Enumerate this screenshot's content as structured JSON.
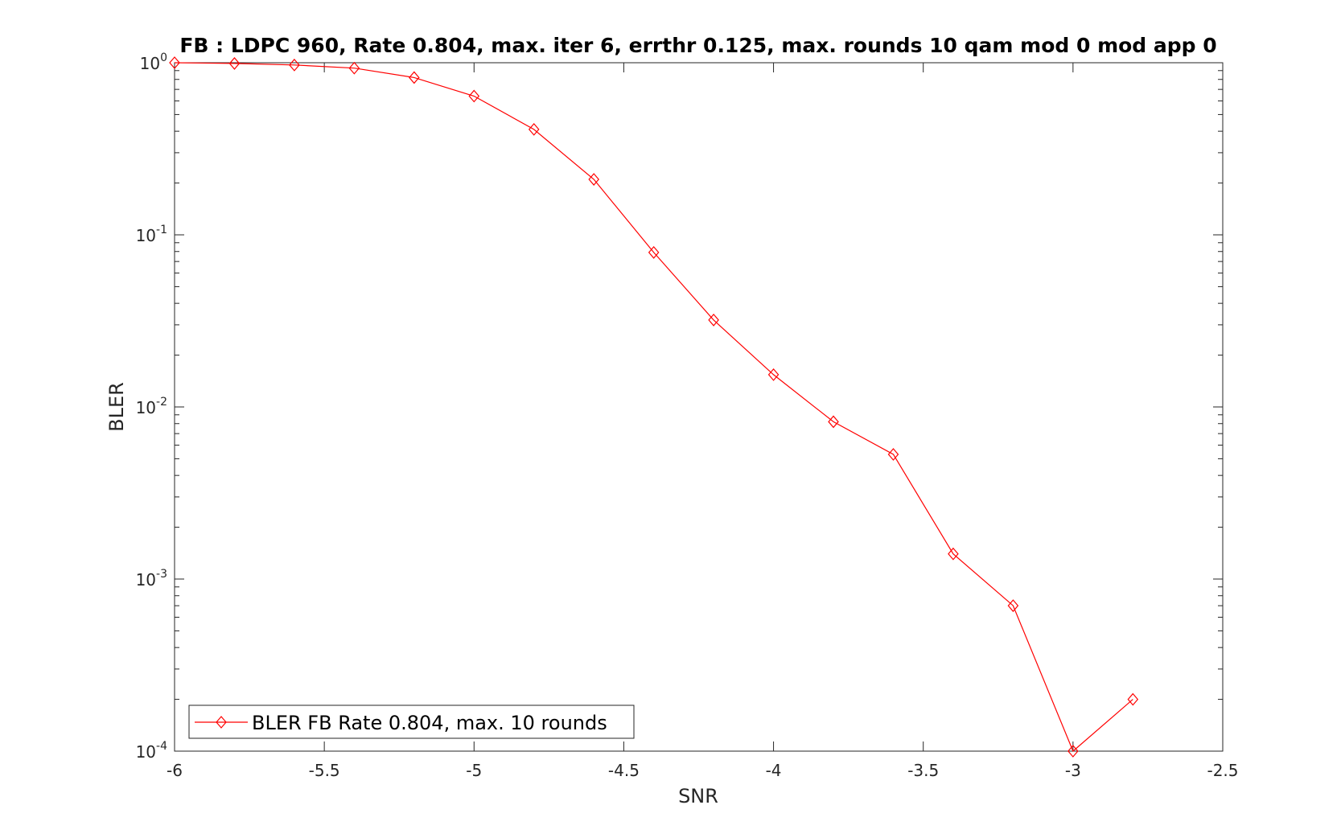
{
  "chart_data": {
    "type": "line",
    "title": "FB : LDPC 960, Rate 0.804, max. iter 6, errthr 0.125, max. rounds 10 qam mod 0 mod app 0",
    "xlabel": "SNR",
    "ylabel": "BLER",
    "xlim": [
      -6,
      -2.5
    ],
    "ylim": [
      0.0001,
      1
    ],
    "yscale": "log",
    "grid": false,
    "legend_position": "bottom-left",
    "x_ticks": [
      "-6",
      "-5.5",
      "-5",
      "-4.5",
      "-4",
      "-3.5",
      "-3",
      "-2.5"
    ],
    "y_ticks": [
      {
        "base": "10",
        "exp": "0"
      },
      {
        "base": "10",
        "exp": "-1"
      },
      {
        "base": "10",
        "exp": "-2"
      },
      {
        "base": "10",
        "exp": "-3"
      },
      {
        "base": "10",
        "exp": "-4"
      }
    ],
    "series": [
      {
        "name": "BLER FB Rate 0.804, max. 10 rounds",
        "color": "#ff0000",
        "marker": "diamond",
        "x": [
          -6.0,
          -5.8,
          -5.6,
          -5.4,
          -5.2,
          -5.0,
          -4.8,
          -4.6,
          -4.4,
          -4.2,
          -4.0,
          -3.8,
          -3.6,
          -3.4,
          -3.2,
          -3.0,
          -2.8
        ],
        "y": [
          1.0,
          0.99,
          0.97,
          0.93,
          0.82,
          0.64,
          0.41,
          0.21,
          0.079,
          0.032,
          0.0154,
          0.0082,
          0.0053,
          0.0014,
          0.0007,
          0.0001,
          0.0002
        ]
      }
    ]
  }
}
